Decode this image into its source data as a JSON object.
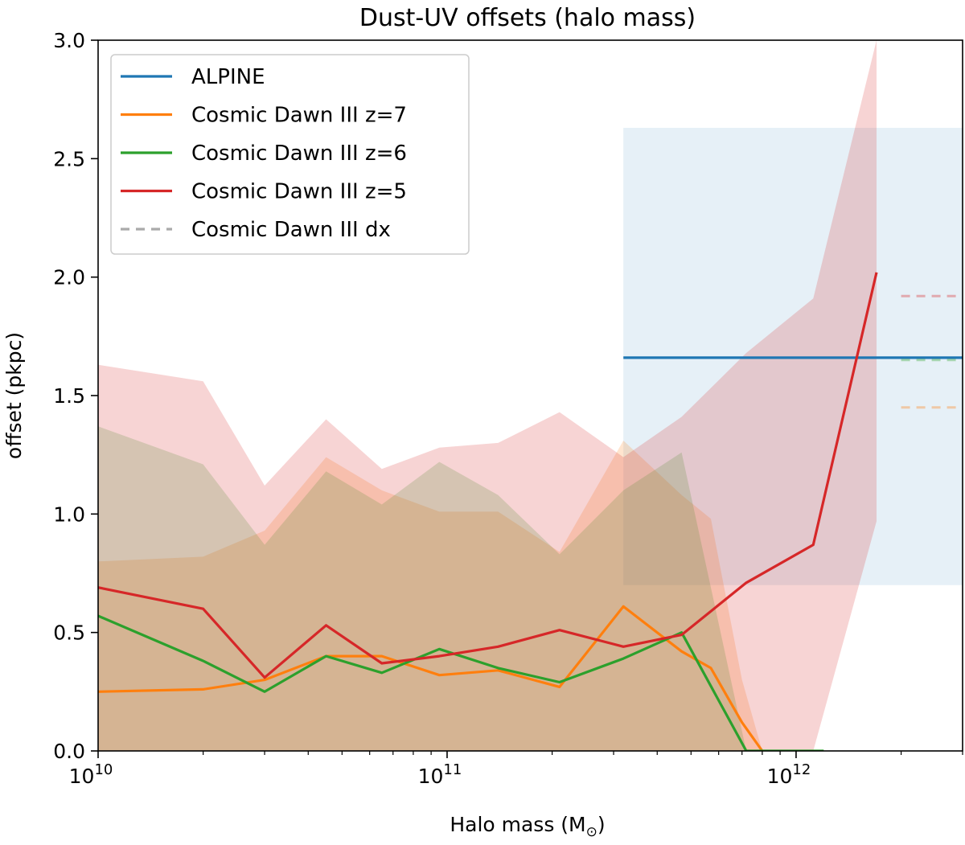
{
  "chart_data": {
    "type": "line",
    "title": "Dust-UV offsets (halo mass)",
    "xlabel": "Halo mass (M",
    "xlabel_sub": "⊙",
    "xlabel_close": ")",
    "ylabel": "offset (pkpc)",
    "x_scale": "log",
    "xlim": [
      10000000000.0,
      3000000000000.0
    ],
    "ylim": [
      0,
      3
    ],
    "x_ticks": [
      {
        "value": 10000000000.0,
        "base": "10",
        "exp": "10"
      },
      {
        "value": 100000000000.0,
        "base": "10",
        "exp": "11"
      },
      {
        "value": 1000000000000.0,
        "base": "10",
        "exp": "12"
      }
    ],
    "y_ticks": [
      {
        "value": 0.0,
        "label": "0.0"
      },
      {
        "value": 0.5,
        "label": "0.5"
      },
      {
        "value": 1.0,
        "label": "1.0"
      },
      {
        "value": 1.5,
        "label": "1.5"
      },
      {
        "value": 2.0,
        "label": "2.0"
      },
      {
        "value": 2.5,
        "label": "2.5"
      },
      {
        "value": 3.0,
        "label": "3.0"
      }
    ],
    "legend": {
      "position": "upper-left",
      "entries": [
        {
          "label": "ALPINE",
          "color": "#1f77b4",
          "style": "solid"
        },
        {
          "label": "Cosmic Dawn III z=7",
          "color": "#ff7f0e",
          "style": "solid"
        },
        {
          "label": "Cosmic Dawn III z=6",
          "color": "#2ca02c",
          "style": "solid"
        },
        {
          "label": "Cosmic Dawn III z=5",
          "color": "#d62728",
          "style": "solid"
        },
        {
          "label": "Cosmic Dawn III dx",
          "color": "#aaaaaa",
          "style": "dashed"
        }
      ]
    },
    "alpine": {
      "color": "#1f77b4",
      "x_range": [
        320000000000.0,
        3000000000000.0
      ],
      "value": 1.66,
      "band": [
        0.7,
        2.63
      ]
    },
    "series": [
      {
        "name": "Cosmic Dawn III z=7",
        "color": "#ff7f0e",
        "x": [
          10000000000.0,
          20000000000.0,
          30000000000.0,
          45000000000.0,
          65000000000.0,
          95000000000.0,
          140000000000.0,
          210000000000.0,
          320000000000.0,
          470000000000.0,
          570000000000.0,
          700000000000.0,
          800000000000.0
        ],
        "y": [
          0.25,
          0.26,
          0.3,
          0.4,
          0.4,
          0.32,
          0.34,
          0.27,
          0.61,
          0.42,
          0.35,
          0.12,
          0.0
        ],
        "band_lower": [
          0,
          0,
          0,
          0,
          0,
          0,
          0,
          0,
          0,
          0,
          0,
          0,
          0
        ],
        "band_upper": [
          0.8,
          0.82,
          0.93,
          1.24,
          1.1,
          1.01,
          1.01,
          0.84,
          1.31,
          1.08,
          0.98,
          0.3,
          0.0
        ]
      },
      {
        "name": "Cosmic Dawn III z=6",
        "color": "#2ca02c",
        "x": [
          10000000000.0,
          20000000000.0,
          30000000000.0,
          45000000000.0,
          65000000000.0,
          95000000000.0,
          140000000000.0,
          210000000000.0,
          320000000000.0,
          470000000000.0,
          720000000000.0,
          1200000000000.0
        ],
        "y": [
          0.57,
          0.38,
          0.25,
          0.4,
          0.33,
          0.43,
          0.35,
          0.29,
          0.39,
          0.5,
          0.0,
          0.0
        ],
        "band_lower": [
          0,
          0,
          0,
          0,
          0,
          0,
          0,
          0,
          0,
          0,
          0,
          0
        ],
        "band_upper": [
          1.37,
          1.21,
          0.87,
          1.18,
          1.04,
          1.22,
          1.08,
          0.83,
          1.1,
          1.26,
          0.0,
          0.0
        ]
      },
      {
        "name": "Cosmic Dawn III z=5",
        "color": "#d62728",
        "x": [
          10000000000.0,
          20000000000.0,
          30000000000.0,
          45000000000.0,
          65000000000.0,
          95000000000.0,
          140000000000.0,
          210000000000.0,
          320000000000.0,
          470000000000.0,
          720000000000.0,
          1120000000000.0,
          1700000000000.0
        ],
        "y": [
          0.69,
          0.6,
          0.31,
          0.53,
          0.37,
          0.4,
          0.44,
          0.51,
          0.44,
          0.49,
          0.71,
          0.87,
          2.02
        ],
        "band_lower": [
          0,
          0,
          0,
          0,
          0,
          0,
          0,
          0,
          0,
          0,
          0,
          0,
          0.97
        ],
        "band_upper": [
          1.63,
          1.56,
          1.12,
          1.4,
          1.19,
          1.28,
          1.3,
          1.43,
          1.24,
          1.41,
          1.68,
          1.91,
          3.0
        ]
      }
    ],
    "dx_markers": [
      {
        "name": "z=5",
        "color": "#d62728",
        "value": 1.92
      },
      {
        "name": "z=6",
        "color": "#2ca02c",
        "value": 1.65
      },
      {
        "name": "z=7",
        "color": "#ff7f0e",
        "value": 1.45
      }
    ],
    "dx_x_range": [
      2000000000000.0,
      3000000000000.0
    ]
  }
}
